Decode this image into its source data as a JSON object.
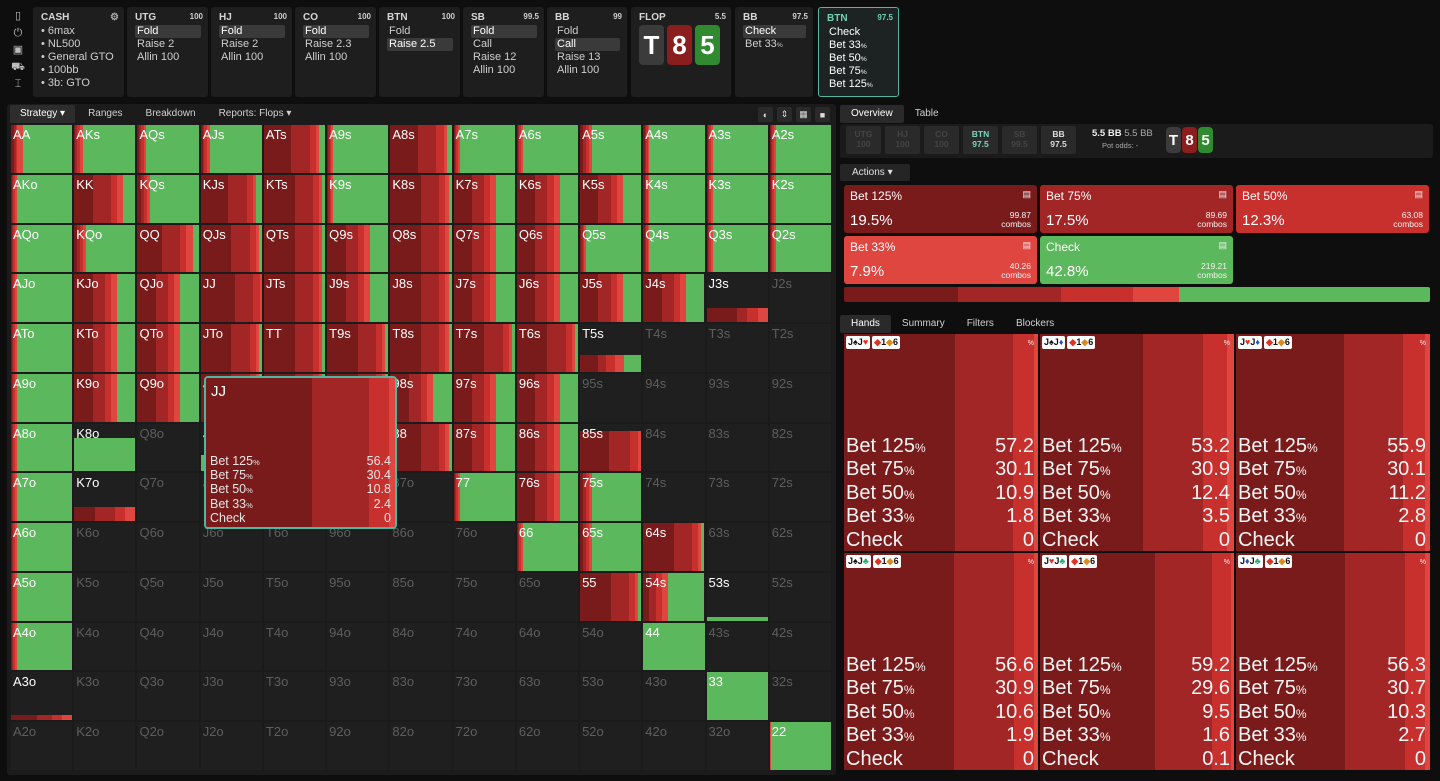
{
  "toolbar_icons": [
    "bookmark-icon",
    "power-icon",
    "save-icon",
    "car-icon",
    "text-cursor-icon"
  ],
  "cash": {
    "title": "CASH",
    "lines": [
      "6max",
      "NL500",
      "General GTO",
      "100bb",
      "3b: GTO"
    ]
  },
  "nodes": [
    {
      "pos": "UTG",
      "stack": "100",
      "options": [
        "Fold",
        "Raise 2",
        "Allin 100"
      ],
      "selected": 0
    },
    {
      "pos": "HJ",
      "stack": "100",
      "options": [
        "Fold",
        "Raise 2",
        "Allin 100"
      ],
      "selected": 0
    },
    {
      "pos": "CO",
      "stack": "100",
      "options": [
        "Fold",
        "Raise 2.3",
        "Allin 100"
      ],
      "selected": 0
    },
    {
      "pos": "BTN",
      "stack": "100",
      "options": [
        "Fold",
        "Raise 2.5"
      ],
      "selected": 1
    },
    {
      "pos": "SB",
      "stack": "99.5",
      "options": [
        "Fold",
        "Call",
        "Raise 12",
        "Allin 100"
      ],
      "selected": 0
    },
    {
      "pos": "BB",
      "stack": "99",
      "options": [
        "Fold",
        "Call",
        "Raise 13",
        "Allin 100"
      ],
      "selected": 1
    }
  ],
  "flop": {
    "label": "FLOP",
    "pot": "5.5",
    "cards": [
      "T",
      "8",
      "5"
    ]
  },
  "bb_node": {
    "pos": "BB",
    "stack": "97.5",
    "options": [
      "Check",
      "Bet 33%"
    ],
    "selected": 0
  },
  "btn_node": {
    "pos": "BTN",
    "stack": "97.5",
    "options": [
      "Check",
      "Bet 33%",
      "Bet 50%",
      "Bet 75%",
      "Bet 125%"
    ]
  },
  "left_tabs": [
    "Strategy",
    "Ranges",
    "Breakdown",
    "Reports: Flops"
  ],
  "view_icons": [
    "contrast-icon",
    "compress-icon",
    "grid-icon",
    "square-icon"
  ],
  "right_tabs": [
    "Overview",
    "Table"
  ],
  "positions": [
    {
      "p": "UTG",
      "s": "100",
      "k": "dim"
    },
    {
      "p": "HJ",
      "s": "100",
      "k": "dim"
    },
    {
      "p": "CO",
      "s": "100",
      "k": "dim"
    },
    {
      "p": "BTN",
      "s": "97.5",
      "k": "hl"
    },
    {
      "p": "SB",
      "s": "99.5",
      "k": "dim"
    },
    {
      "p": "BB",
      "s": "97.5",
      "k": "br"
    }
  ],
  "pot": {
    "bb": "5.5 BB",
    "bb2": "5.5 BB",
    "odds_label": "Pot odds:",
    "odds": "-"
  },
  "actions_label": "Actions",
  "actions": [
    {
      "name": "Bet 125%",
      "pct": "19.5%",
      "combos": "99.87",
      "color": "#7a1b1b"
    },
    {
      "name": "Bet 75%",
      "pct": "17.5%",
      "combos": "89.69",
      "color": "#a32626"
    },
    {
      "name": "Bet 50%",
      "pct": "12.3%",
      "combos": "63.08",
      "color": "#c8302e"
    },
    {
      "name": "Bet 33%",
      "pct": "7.9%",
      "combos": "40.26",
      "color": "#e04640"
    },
    {
      "name": "Check",
      "pct": "42.8%",
      "combos": "219.21",
      "color": "#5cb85c"
    }
  ],
  "combos_word": "combos",
  "hand_tabs": [
    "Hands",
    "Summary",
    "Filters",
    "Blockers"
  ],
  "hands": [
    {
      "c1": "J",
      "s1": "♠",
      "c2": "J",
      "s2": "♥",
      "rows": [
        [
          "Bet 125%",
          "57.2"
        ],
        [
          "Bet 75%",
          "30.1"
        ],
        [
          "Bet 50%",
          "10.9"
        ],
        [
          "Bet 33%",
          "1.8"
        ],
        [
          "Check",
          "0"
        ]
      ]
    },
    {
      "c1": "J",
      "s1": "♠",
      "c2": "J",
      "s2": "♦",
      "rows": [
        [
          "Bet 125%",
          "53.2"
        ],
        [
          "Bet 75%",
          "30.9"
        ],
        [
          "Bet 50%",
          "12.4"
        ],
        [
          "Bet 33%",
          "3.5"
        ],
        [
          "Check",
          "0"
        ]
      ]
    },
    {
      "c1": "J",
      "s1": "♥",
      "c2": "J",
      "s2": "♦",
      "rows": [
        [
          "Bet 125%",
          "55.9"
        ],
        [
          "Bet 75%",
          "30.1"
        ],
        [
          "Bet 50%",
          "11.2"
        ],
        [
          "Bet 33%",
          "2.8"
        ],
        [
          "Check",
          "0"
        ]
      ]
    },
    {
      "c1": "J",
      "s1": "♠",
      "c2": "J",
      "s2": "♣",
      "rows": [
        [
          "Bet 125%",
          "56.6"
        ],
        [
          "Bet 75%",
          "30.9"
        ],
        [
          "Bet 50%",
          "10.6"
        ],
        [
          "Bet 33%",
          "1.9"
        ],
        [
          "Check",
          "0"
        ]
      ]
    },
    {
      "c1": "J",
      "s1": "♥",
      "c2": "J",
      "s2": "♣",
      "rows": [
        [
          "Bet 125%",
          "59.2"
        ],
        [
          "Bet 75%",
          "29.6"
        ],
        [
          "Bet 50%",
          "9.5"
        ],
        [
          "Bet 33%",
          "1.6"
        ],
        [
          "Check",
          "0.1"
        ]
      ]
    },
    {
      "c1": "J",
      "s1": "♦",
      "c2": "J",
      "s2": "♣",
      "rows": [
        [
          "Bet 125%",
          "56.3"
        ],
        [
          "Bet 75%",
          "30.7"
        ],
        [
          "Bet 50%",
          "10.3"
        ],
        [
          "Bet 33%",
          "2.7"
        ],
        [
          "Check",
          "0"
        ]
      ]
    }
  ],
  "blocker_tags": [
    "1",
    "6"
  ],
  "pct_sign": "%",
  "jj": {
    "label": "JJ",
    "rows": [
      [
        "Bet 125%",
        "56.4"
      ],
      [
        "Bet 75%",
        "30.4"
      ],
      [
        "Bet 50%",
        "10.8"
      ],
      [
        "Bet 33%",
        "2.4"
      ],
      [
        "Check",
        "0"
      ]
    ]
  },
  "ranks": [
    "A",
    "K",
    "Q",
    "J",
    "T",
    "9",
    "8",
    "7",
    "6",
    "5",
    "4",
    "3",
    "2"
  ],
  "matrix": {
    "AA": [
      0.05,
      0.03,
      0.02,
      0.1,
      0.8
    ],
    "AKs": [
      0.02,
      0.03,
      0.05,
      0.05,
      0.85
    ],
    "AQs": [
      0.03,
      0.03,
      0.04,
      0.04,
      0.86
    ],
    "AJs": [
      0.03,
      0.03,
      0.04,
      0.05,
      0.85
    ],
    "ATs": [
      0.45,
      0.3,
      0.1,
      0.05,
      0.1
    ],
    "A9s": [
      0.02,
      0.02,
      0.03,
      0.03,
      0.9
    ],
    "A8s": [
      0.45,
      0.3,
      0.12,
      0.05,
      0.08
    ],
    "A7s": [
      0.02,
      0.02,
      0.03,
      0.03,
      0.9
    ],
    "A6s": [
      0.02,
      0.02,
      0.03,
      0.03,
      0.9
    ],
    "A5s": [
      0.05,
      0.05,
      0.05,
      0.05,
      0.8
    ],
    "A4s": [
      0.02,
      0.02,
      0.03,
      0.03,
      0.9
    ],
    "A3s": [
      0.02,
      0.02,
      0.03,
      0.03,
      0.9
    ],
    "A2s": [
      0.02,
      0.02,
      0.03,
      0.03,
      0.9
    ],
    "AKo": [
      0.02,
      0.02,
      0.03,
      0.03,
      0.9
    ],
    "KK": [
      0.3,
      0.3,
      0.1,
      0.1,
      0.2
    ],
    "KQs": [
      0.05,
      0.05,
      0.05,
      0.05,
      0.8
    ],
    "KJs": [
      0.45,
      0.3,
      0.1,
      0.05,
      0.1
    ],
    "KTs": [
      0.5,
      0.3,
      0.1,
      0.05,
      0.05
    ],
    "K9s": [
      0.02,
      0.02,
      0.03,
      0.03,
      0.9
    ],
    "K8s": [
      0.5,
      0.3,
      0.1,
      0.05,
      0.05
    ],
    "K7s": [
      0.3,
      0.2,
      0.1,
      0.1,
      0.3
    ],
    "K6s": [
      0.3,
      0.2,
      0.1,
      0.1,
      0.3
    ],
    "K5s": [
      0.3,
      0.2,
      0.1,
      0.1,
      0.3
    ],
    "K4s": [
      0.02,
      0.02,
      0.03,
      0.03,
      0.9
    ],
    "K3s": [
      0.02,
      0.02,
      0.03,
      0.03,
      0.9
    ],
    "K2s": [
      0.02,
      0.02,
      0.03,
      0.03,
      0.9
    ],
    "AQo": [
      0.02,
      0.02,
      0.03,
      0.03,
      0.9
    ],
    "KQo": [
      0.05,
      0.05,
      0.05,
      0.05,
      0.8
    ],
    "QQ": [
      0.4,
      0.3,
      0.1,
      0.1,
      0.1
    ],
    "QJs": [
      0.5,
      0.3,
      0.1,
      0.05,
      0.05
    ],
    "QTs": [
      0.5,
      0.3,
      0.1,
      0.05,
      0.05
    ],
    "Q9s": [
      0.3,
      0.2,
      0.1,
      0.1,
      0.3
    ],
    "Q8s": [
      0.5,
      0.3,
      0.1,
      0.05,
      0.05
    ],
    "Q7s": [
      0.3,
      0.2,
      0.1,
      0.1,
      0.3
    ],
    "Q6s": [
      0.3,
      0.2,
      0.1,
      0.1,
      0.3
    ],
    "Q5s": [
      0.02,
      0.02,
      0.03,
      0.03,
      0.9
    ],
    "Q4s": [
      0.02,
      0.02,
      0.03,
      0.03,
      0.9
    ],
    "Q3s": [
      0.02,
      0.02,
      0.03,
      0.03,
      0.9
    ],
    "Q2s": [
      0.02,
      0.02,
      0.03,
      0.03,
      0.9
    ],
    "AJo": [
      0.02,
      0.02,
      0.03,
      0.03,
      0.9
    ],
    "KJo": [
      0.3,
      0.2,
      0.1,
      0.1,
      0.3
    ],
    "QJo": [
      0.3,
      0.2,
      0.1,
      0.1,
      0.3
    ],
    "JJ": [
      0.56,
      0.3,
      0.11,
      0.03,
      0.0
    ],
    "JTs": [
      0.5,
      0.3,
      0.1,
      0.05,
      0.05
    ],
    "J9s": [
      0.3,
      0.2,
      0.1,
      0.1,
      0.3
    ],
    "J8s": [
      0.5,
      0.3,
      0.1,
      0.05,
      0.05
    ],
    "J7s": [
      0.3,
      0.2,
      0.1,
      0.1,
      0.3
    ],
    "J6s": [
      0.3,
      0.2,
      0.1,
      0.1,
      0.3
    ],
    "J5s": [
      0.3,
      0.2,
      0.1,
      0.1,
      0.3
    ],
    "J4s": [
      0.3,
      0.2,
      0.1,
      0.1,
      0.3
    ],
    "J3s": [
      0.15,
      0.05,
      0.05,
      0.05,
      0.0
    ],
    "J2s": null,
    "ATo": [
      0.02,
      0.02,
      0.03,
      0.03,
      0.9
    ],
    "KTo": [
      0.3,
      0.2,
      0.1,
      0.1,
      0.3
    ],
    "QTo": [
      0.3,
      0.2,
      0.1,
      0.1,
      0.3
    ],
    "JTo": [
      0.5,
      0.3,
      0.1,
      0.05,
      0.05
    ],
    "TT": [
      0.5,
      0.3,
      0.1,
      0.05,
      0.05
    ],
    "T9s": [
      0.5,
      0.3,
      0.1,
      0.05,
      0.05
    ],
    "T8s": [
      0.5,
      0.3,
      0.1,
      0.05,
      0.05
    ],
    "T7s": [
      0.5,
      0.3,
      0.1,
      0.05,
      0.05
    ],
    "T6s": [
      0.5,
      0.3,
      0.1,
      0.05,
      0.05
    ],
    "T5s": [
      0.1,
      0.05,
      0.05,
      0.05,
      0.1
    ],
    "T4s": null,
    "T3s": null,
    "T2s": null,
    "A9o": [
      0.02,
      0.02,
      0.03,
      0.03,
      0.9
    ],
    "K9o": [
      0.3,
      0.2,
      0.1,
      0.1,
      0.3
    ],
    "Q9o": [
      0.3,
      0.2,
      0.1,
      0.1,
      0.3
    ],
    "J9o": [
      0.5,
      0.3,
      0.1,
      0.05,
      0.05
    ],
    "T9o": [
      0.5,
      0.3,
      0.1,
      0.05,
      0.05
    ],
    "99": [
      0.5,
      0.3,
      0.1,
      0.05,
      0.05
    ],
    "98s": [
      0.3,
      0.2,
      0.1,
      0.1,
      0.3
    ],
    "97s": [
      0.3,
      0.2,
      0.1,
      0.1,
      0.3
    ],
    "96s": [
      0.3,
      0.2,
      0.1,
      0.1,
      0.3
    ],
    "95s": null,
    "94s": null,
    "93s": null,
    "92s": null,
    "A8o": [
      0.02,
      0.02,
      0.03,
      0.03,
      0.9
    ],
    "K8o": [
      0.0,
      0.0,
      0.0,
      0.0,
      0.7
    ],
    "Q8o": null,
    "J8o": [
      0.0,
      0.0,
      0.0,
      0.0,
      0.35
    ],
    "T8o": [
      0.5,
      0.3,
      0.1,
      0.05,
      0.05
    ],
    "98o": [
      0.0,
      0.0,
      0.0,
      0.0,
      0.7
    ],
    "88": [
      0.5,
      0.3,
      0.1,
      0.05,
      0.05
    ],
    "87s": [
      0.3,
      0.2,
      0.1,
      0.1,
      0.3
    ],
    "86s": [
      0.3,
      0.2,
      0.1,
      0.1,
      0.3
    ],
    "85s": [
      0.4,
      0.3,
      0.1,
      0.05,
      0.0
    ],
    "84s": null,
    "83s": null,
    "82s": null,
    "A7o": [
      0.02,
      0.02,
      0.03,
      0.03,
      0.9
    ],
    "K7o": [
      0.1,
      0.1,
      0.05,
      0.05,
      0.0
    ],
    "Q7o": null,
    "J7o": null,
    "T7o": null,
    "97o": null,
    "87o": null,
    "77": [
      0.02,
      0.02,
      0.03,
      0.03,
      0.9
    ],
    "76s": [
      0.3,
      0.2,
      0.1,
      0.1,
      0.3
    ],
    "75s": [
      0.05,
      0.05,
      0.05,
      0.05,
      0.8
    ],
    "74s": null,
    "73s": null,
    "72s": null,
    "A6o": [
      0.02,
      0.02,
      0.03,
      0.03,
      0.9
    ],
    "K6o": null,
    "Q6o": null,
    "J6o": null,
    "T6o": null,
    "96o": null,
    "86o": null,
    "76o": null,
    "66": [
      0.02,
      0.02,
      0.03,
      0.03,
      0.9
    ],
    "65s": [
      0.05,
      0.05,
      0.05,
      0.05,
      0.8
    ],
    "64s": [
      0.5,
      0.3,
      0.1,
      0.05,
      0.05
    ],
    "63s": null,
    "62s": null,
    "A5o": [
      0.02,
      0.02,
      0.03,
      0.03,
      0.9
    ],
    "K5o": null,
    "Q5o": null,
    "J5o": null,
    "T5o": null,
    "95o": null,
    "85o": null,
    "75o": null,
    "65o": null,
    "55": [
      0.5,
      0.3,
      0.1,
      0.05,
      0.05
    ],
    "54s": [
      0.1,
      0.1,
      0.1,
      0.1,
      0.6
    ],
    "53s": [
      0.0,
      0.0,
      0.0,
      0.0,
      0.08
    ],
    "52s": null,
    "A4o": [
      0.02,
      0.02,
      0.03,
      0.03,
      0.9
    ],
    "K4o": null,
    "Q4o": null,
    "J4o": null,
    "T4o": null,
    "94o": null,
    "84o": null,
    "74o": null,
    "64o": null,
    "54o": null,
    "44": [
      0.0,
      0.0,
      0.0,
      0.0,
      1.0
    ],
    "43s": null,
    "42s": null,
    "A3o": [
      0.05,
      0.03,
      0.02,
      0.02,
      0.0
    ],
    "K3o": null,
    "Q3o": null,
    "J3o": null,
    "T3o": null,
    "93o": null,
    "83o": null,
    "73o": null,
    "63o": null,
    "53o": null,
    "43o": null,
    "33": [
      0.0,
      0.0,
      0.0,
      0.0,
      1.0
    ],
    "32s": null,
    "A2o": null,
    "K2o": null,
    "Q2o": null,
    "J2o": null,
    "T2o": null,
    "92o": null,
    "82o": null,
    "72o": null,
    "62o": null,
    "52o": null,
    "42o": null,
    "32o": null,
    "22": [
      0.0,
      0.0,
      0.0,
      0.02,
      0.98
    ]
  }
}
